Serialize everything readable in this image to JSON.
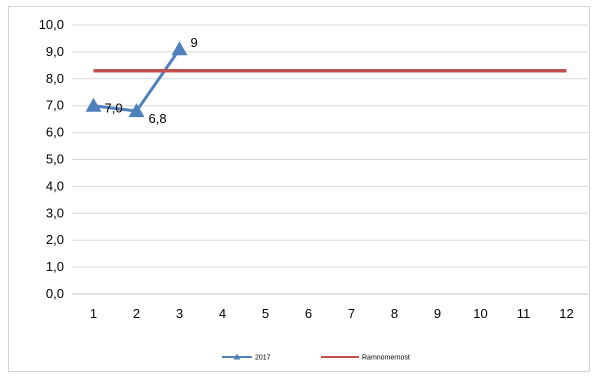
{
  "chart_data": {
    "type": "line",
    "title": "",
    "xlabel": "",
    "ylabel": "",
    "x": [
      1,
      2,
      3,
      4,
      5,
      6,
      7,
      8,
      9,
      10,
      11,
      12
    ],
    "x_tick_labels": [
      "1",
      "2",
      "3",
      "4",
      "5",
      "6",
      "7",
      "8",
      "9",
      "10",
      "11",
      "12"
    ],
    "ylim": [
      0,
      10
    ],
    "y_tick_labels": [
      "0,0",
      "1,0",
      "2,0",
      "3,0",
      "4,0",
      "5,0",
      "6,0",
      "7,0",
      "8,0",
      "9,0",
      "10,0"
    ],
    "grid": "horizontal",
    "legend_position": "bottom",
    "series": [
      {
        "name": "2017",
        "x": [
          1,
          2,
          3
        ],
        "values": [
          7.0,
          6.8,
          9.1
        ],
        "data_labels": [
          "7,0",
          "6,8",
          "9"
        ],
        "color": "#4f81bd",
        "marker": "triangle"
      },
      {
        "name": "Ramnomernost",
        "x": [
          1,
          12
        ],
        "values": [
          8.3,
          8.3
        ],
        "color": "#c0504d",
        "marker": "none"
      }
    ]
  }
}
